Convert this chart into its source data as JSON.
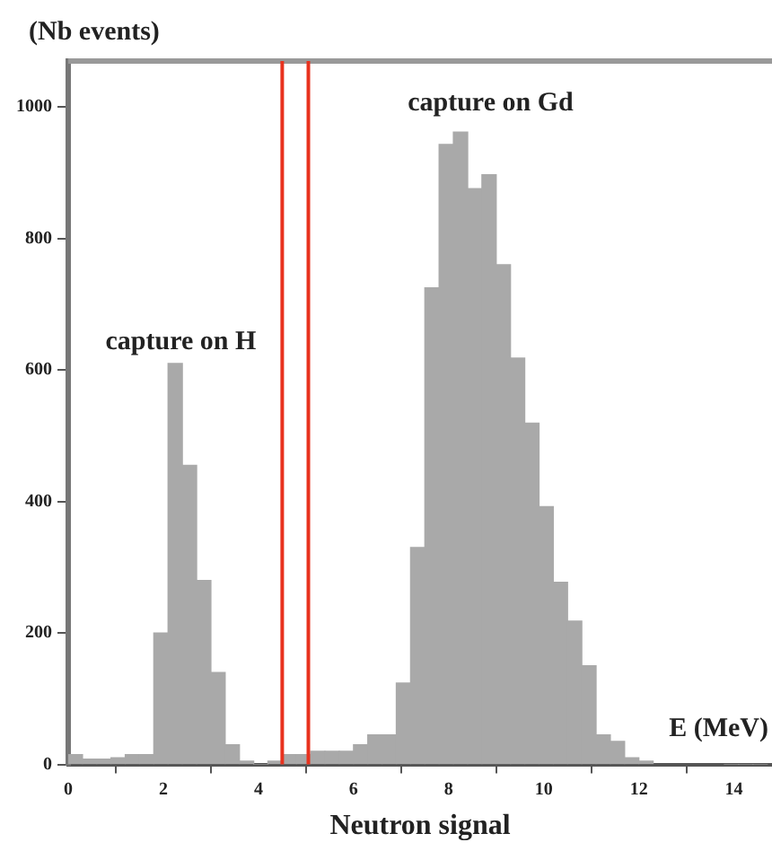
{
  "chart_data": {
    "type": "histogram",
    "xlabel": "Neutron signal",
    "ylabel": "(Nb events)",
    "bins": [
      0,
      0.3,
      0.6,
      0.9,
      1.2,
      1.5,
      1.8,
      2.1,
      2.4,
      2.7,
      3,
      3.3,
      3.6,
      3.9,
      4.2,
      4.5,
      4.8,
      5.1,
      5.4,
      5.7,
      6,
      6.3,
      6.6,
      6.9,
      7.2,
      7.5,
      7.8,
      8.1,
      8.4,
      8.7,
      9,
      9.3,
      9.6,
      9.9,
      10.2,
      10.5,
      10.8,
      11.1,
      11.4,
      11.7,
      12,
      12.3,
      12.6,
      12.9,
      13.2,
      13.5,
      13.8,
      14.1,
      14.4,
      14.7
    ],
    "values": [
      15,
      8,
      8,
      10,
      15,
      15,
      200,
      610,
      455,
      280,
      140,
      30,
      5,
      0,
      5,
      15,
      15,
      20,
      20,
      20,
      30,
      45,
      45,
      124,
      330,
      725,
      943,
      962,
      876,
      897,
      760,
      618,
      519,
      392,
      277,
      218,
      150,
      45,
      35,
      10,
      5,
      null,
      null,
      null,
      null,
      null,
      0,
      0,
      0
    ],
    "color": "#a9a9a9",
    "xlim": [
      0,
      14.8
    ],
    "xticks": [
      0,
      2,
      4,
      6,
      8,
      10,
      12,
      14
    ],
    "ylim": [
      0,
      1070
    ],
    "yticks": [
      0,
      200,
      400,
      600,
      800,
      1000
    ],
    "grid": false,
    "legend": false,
    "ref_lines": [
      {
        "axis": "x",
        "value": 4.5,
        "color": "#e8321e"
      },
      {
        "axis": "x",
        "value": 5.05,
        "color": "#e8321e"
      }
    ],
    "annotations": [
      "capture on H",
      "capture on Gd",
      "E (MeV)"
    ]
  }
}
